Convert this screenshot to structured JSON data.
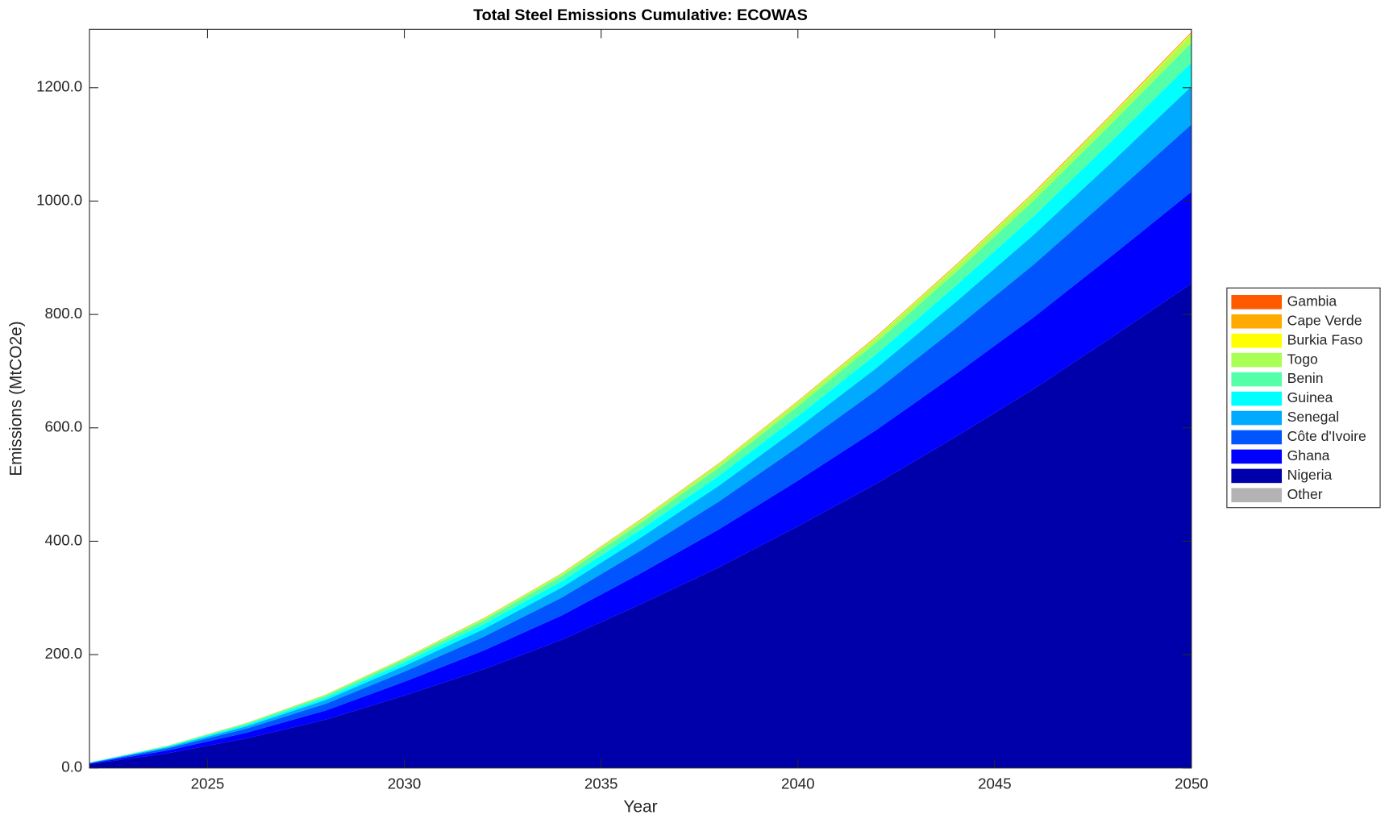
{
  "chart_data": {
    "type": "stacked_area",
    "title": "Total Steel Emissions Cumulative: ECOWAS",
    "x_label": "Year",
    "y_label": "Emissions (MtCO2e)",
    "x": [
      2022,
      2024,
      2026,
      2028,
      2030,
      2032,
      2034,
      2036,
      2038,
      2040,
      2042,
      2044,
      2046,
      2048,
      2050
    ],
    "xlim": [
      2022,
      2050
    ],
    "xticks": [
      2025,
      2030,
      2035,
      2040,
      2045,
      2050
    ],
    "ylim": [
      0,
      1303
    ],
    "yticks": [
      {
        "value": 0,
        "label": "0.0"
      },
      {
        "value": 200,
        "label": "200.0"
      },
      {
        "value": 400,
        "label": "400.0"
      },
      {
        "value": 600,
        "label": "600.0"
      },
      {
        "value": 800,
        "label": "800.0"
      },
      {
        "value": 1000,
        "label": "1000.0"
      },
      {
        "value": 1200,
        "label": "1200.0"
      }
    ],
    "legend_position": "right",
    "series": [
      {
        "name": "Gambia",
        "color": "#ff5a00",
        "values": [
          0,
          0,
          0.1,
          0.1,
          0.2,
          0.2,
          0.3,
          0.4,
          0.4,
          0.5,
          0.6,
          0.7,
          0.8,
          0.9,
          1.0
        ]
      },
      {
        "name": "Cape Verde",
        "color": "#ffaa00",
        "values": [
          0,
          0,
          0.1,
          0.1,
          0.2,
          0.2,
          0.3,
          0.4,
          0.4,
          0.5,
          0.6,
          0.7,
          0.8,
          0.9,
          1.0
        ]
      },
      {
        "name": "Burkia Faso",
        "color": "#ffff00",
        "values": [
          0,
          0.1,
          0.1,
          0.2,
          0.3,
          0.4,
          0.5,
          0.7,
          0.8,
          1.0,
          1.1,
          1.3,
          1.5,
          1.7,
          2.0
        ]
      },
      {
        "name": "Togo",
        "color": "#aaff55",
        "values": [
          0.1,
          0.5,
          0.9,
          1.5,
          2.2,
          3.0,
          4.0,
          5.1,
          6.2,
          7.5,
          8.8,
          10.2,
          11.7,
          13.3,
          15.0
        ]
      },
      {
        "name": "Benin",
        "color": "#55ffaa",
        "values": [
          0.3,
          1.1,
          2.2,
          3.5,
          5.2,
          7.1,
          9.3,
          11.8,
          14.5,
          17.5,
          20.6,
          23.9,
          27.4,
          31.2,
          35.0
        ]
      },
      {
        "name": "Guinea",
        "color": "#00ffff",
        "values": [
          0.3,
          1.3,
          2.6,
          4.2,
          6.3,
          8.5,
          11.1,
          14.2,
          17.4,
          20.9,
          24.6,
          28.7,
          32.8,
          37.4,
          42.0
        ]
      },
      {
        "name": "Senegal",
        "color": "#00aaff",
        "values": [
          0.5,
          2.1,
          4.1,
          6.7,
          10.0,
          13.6,
          17.7,
          22.6,
          27.8,
          33.4,
          39.3,
          45.7,
          52.4,
          59.6,
          67.0
        ]
      },
      {
        "name": "Côte d'Ivoire",
        "color": "#0055ff",
        "values": [
          0.9,
          3.7,
          7.3,
          11.9,
          17.8,
          24.2,
          31.5,
          40.2,
          49.3,
          59.3,
          69.8,
          81.3,
          93.1,
          105.9,
          119.0
        ]
      },
      {
        "name": "Ghana",
        "color": "#0000ff",
        "values": [
          1.2,
          5.0,
          9.9,
          16.1,
          24.2,
          32.9,
          42.8,
          54.6,
          67.0,
          80.6,
          94.9,
          110.4,
          126.5,
          143.8,
          161.6
        ]
      },
      {
        "name": "Nigeria",
        "color": "#0000aa",
        "values": [
          6.6,
          26.2,
          52.5,
          85.3,
          127.9,
          173.8,
          226.3,
          288.6,
          354.2,
          426.4,
          501.8,
          583.8,
          669.1,
          761.0,
          854.8
        ]
      },
      {
        "name": "Other",
        "color": "#b3b3b3",
        "values": [
          0,
          0,
          0,
          0,
          0,
          0,
          0,
          0,
          0,
          0,
          0,
          0,
          0,
          0,
          0
        ]
      }
    ]
  }
}
